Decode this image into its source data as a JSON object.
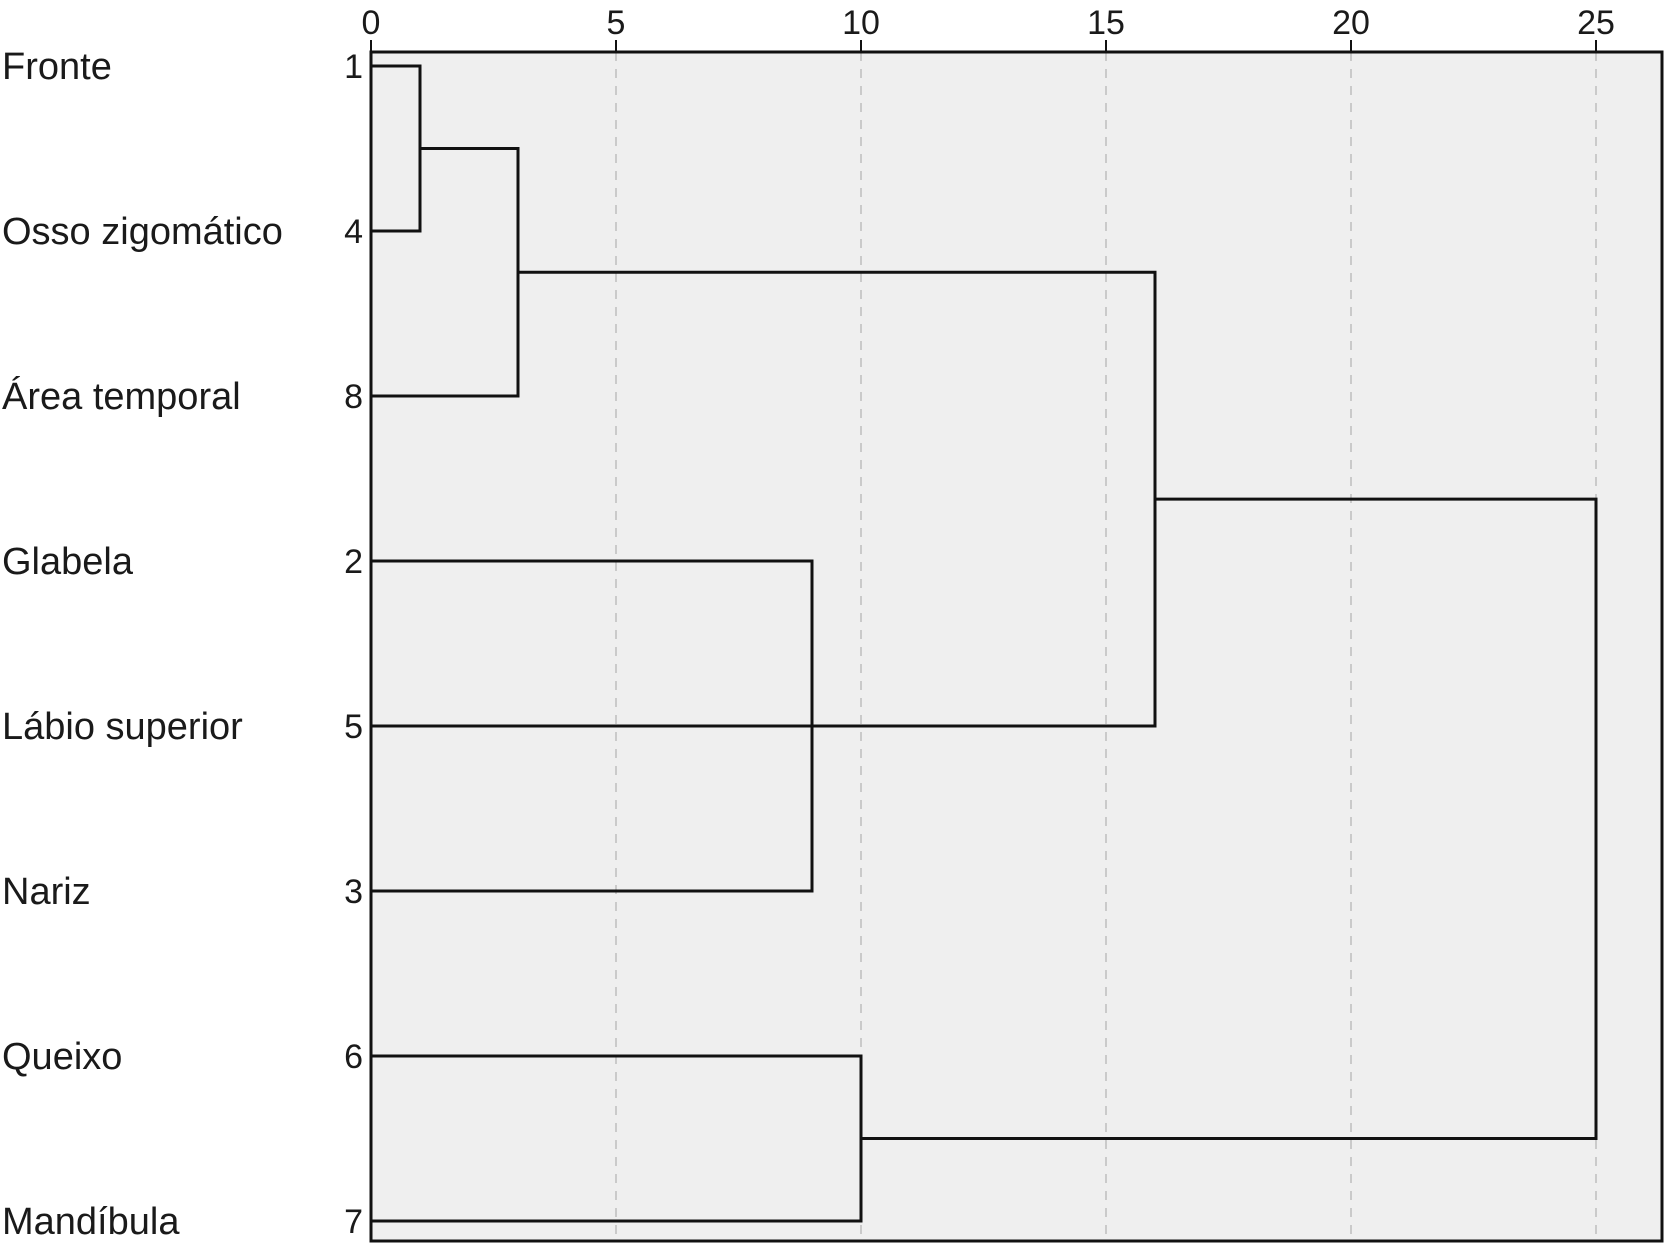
{
  "chart_data": {
    "type": "dendrogram",
    "orientation": "horizontal",
    "title": "",
    "xlabel": "",
    "ylabel": "",
    "x_ticks": [
      0,
      5,
      10,
      15,
      20,
      25
    ],
    "xlim": [
      0,
      26.5
    ],
    "grid": "vertical dashed",
    "leaves": [
      {
        "id": "1",
        "label": "Fronte"
      },
      {
        "id": "4",
        "label": "Osso zigomático"
      },
      {
        "id": "8",
        "label": "Área temporal"
      },
      {
        "id": "2",
        "label": "Glabela"
      },
      {
        "id": "5",
        "label": "Lábio superior"
      },
      {
        "id": "3",
        "label": "Nariz"
      },
      {
        "id": "6",
        "label": "Queixo"
      },
      {
        "id": "7",
        "label": "Mandíbula"
      }
    ],
    "merges": [
      {
        "left": "1",
        "right": "4",
        "height": 1,
        "result": "A"
      },
      {
        "left": "A",
        "right": "8",
        "height": 3,
        "result": "B"
      },
      {
        "left": "2",
        "right": "3",
        "height": 9,
        "result": "C"
      },
      {
        "left": "C",
        "right": "5",
        "height": 9,
        "result": "D"
      },
      {
        "left": "6",
        "right": "7",
        "height": 10,
        "result": "E"
      },
      {
        "left": "B",
        "right": "D",
        "height": 16,
        "result": "F"
      },
      {
        "left": "F",
        "right": "E",
        "height": 25,
        "result": "G"
      }
    ]
  },
  "colors": {
    "plot_background": "#efefef",
    "link": "#111111",
    "frame": "#111111",
    "grid": "#bdbdbd"
  }
}
